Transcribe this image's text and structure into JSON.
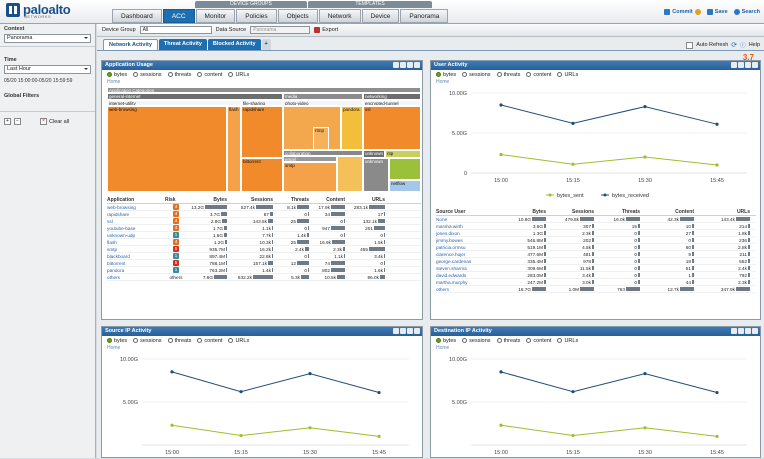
{
  "app": {
    "brand": "paloalto",
    "brand_sub": "NETWORKS"
  },
  "header": {
    "group_device": "DEVICE GROUPS",
    "group_templates": "TEMPLATES",
    "tabs": [
      "Dashboard",
      "ACC",
      "Monitor",
      "Policies",
      "Objects",
      "Network",
      "Device",
      "Panorama"
    ],
    "active_tab": "ACC",
    "commit": "Commit",
    "save": "Save",
    "search": "Search"
  },
  "left": {
    "context_label": "Context",
    "context_value": "Panorama",
    "time_label": "Time",
    "time_value": "Last Hour",
    "time_range": "05/20 15:00:00-05/20 15:59:59",
    "global_filters": "Global Filters",
    "clear_all": "Clear all"
  },
  "toolbar": {
    "device_group_label": "Device Group",
    "device_group_value": "All",
    "data_source_label": "Data Source",
    "data_source_value": "Panorama",
    "export": "Export"
  },
  "subtabs": [
    "Network Activity",
    "Threat Activity",
    "Blocked Activity",
    "+"
  ],
  "auto_refresh": "Auto Refresh",
  "help": "Help",
  "risk_value": "3.7",
  "radios": [
    "bytes",
    "sessions",
    "threats",
    "content",
    "URLs"
  ],
  "home": "Home",
  "app_usage": {
    "title": "Application Usage",
    "treemap": {
      "root": "Application Categories",
      "l1": [
        {
          "label": "general-internet"
        },
        {
          "label": "media"
        },
        {
          "label": "networking"
        }
      ],
      "cells": [
        "internet-utility",
        "file-sharing",
        "photo-video",
        "encrypted-tunnel",
        "web-browsing",
        "flash",
        "rapidshare",
        "pandora",
        "ssl",
        "rtmp",
        "bittorrent",
        "collaboration",
        "email",
        "smtp",
        "unknown",
        "ntp",
        "netflow",
        "unknown"
      ]
    },
    "columns": [
      "Application",
      "Risk",
      "Bytes",
      "Sessions",
      "Threats",
      "Content",
      "URLs"
    ],
    "rows": [
      {
        "app": "web-browsing",
        "risk": "4",
        "bytes": "13.2G",
        "sessions": "527.4k",
        "threats": "8.1k",
        "content": "17.9k",
        "urls": "283.1k"
      },
      {
        "app": "rapidshare",
        "risk": "4",
        "bytes": "3.7G",
        "sessions": "87",
        "threats": "0",
        "content": "34",
        "urls": "17"
      },
      {
        "app": "ssl",
        "risk": "4",
        "bytes": "2.8G",
        "sessions": "143.5k",
        "threats": "25",
        "content": "0",
        "urls": "132.1k"
      },
      {
        "app": "youtube-base",
        "risk": "4",
        "bytes": "1.7G",
        "sessions": "1.1k",
        "threats": "0",
        "content": "947",
        "urls": "201"
      },
      {
        "app": "unknown-udp",
        "risk": "1",
        "bytes": "1.6G",
        "sessions": "7.7k",
        "threats": "1.4k",
        "content": "0",
        "urls": "0"
      },
      {
        "app": "flash",
        "risk": "4",
        "bytes": "1.2G",
        "sessions": "10.3k",
        "threats": "25",
        "content": "16.9k",
        "urls": "1.5k"
      },
      {
        "app": "smtp",
        "risk": "5",
        "bytes": "935.7M",
        "sessions": "16.2k",
        "threats": "2.4k",
        "content": "2.3k",
        "urls": "455"
      },
      {
        "app": "blackboard",
        "risk": "1",
        "bytes": "897.4M",
        "sessions": "22.8k",
        "threats": "0",
        "content": "1.1k",
        "urls": "3.4k"
      },
      {
        "app": "bittorrent",
        "risk": "5",
        "bytes": "788.1M",
        "sessions": "157.1k",
        "threats": "12",
        "content": "74",
        "urls": "0"
      },
      {
        "app": "pandora",
        "risk": "1",
        "bytes": "763.2M",
        "sessions": "1.4k",
        "threats": "0",
        "content": "802",
        "urls": "1.6k"
      },
      {
        "app": "others",
        "risk": "others",
        "bytes": "7.6G",
        "sessions": "632.2k",
        "threats": "5.3k",
        "content": "10.5k",
        "urls": "86.0k"
      }
    ]
  },
  "user_activity": {
    "title": "User Activity",
    "chart": {
      "yticks": [
        "10.00G",
        "5.00G",
        "0"
      ],
      "xticks": [
        "15:00",
        "15:15",
        "15:30",
        "15:45"
      ],
      "legend": [
        "bytes_sent",
        "bytes_received"
      ]
    },
    "columns": [
      "Source User",
      "Bytes",
      "Sessions",
      "Threats",
      "Content",
      "URLs"
    ],
    "rows": [
      {
        "user": "None",
        "bytes": "10.8G",
        "sessions": "479.8k",
        "threats": "16.0k",
        "content": "42.3k",
        "urls": "143.4k"
      },
      {
        "user": "marsha.wirth",
        "bytes": "3.6G",
        "sessions": "307",
        "threats": "15",
        "content": "10",
        "urls": "214"
      },
      {
        "user": "jones.dixon",
        "bytes": "1.3G",
        "sessions": "2.3k",
        "threats": "0",
        "content": "27",
        "urls": "1.8k"
      },
      {
        "user": "jimmy.bowes",
        "bytes": "546.8M",
        "sessions": "202",
        "threats": "0",
        "content": "0",
        "urls": "236"
      },
      {
        "user": "patricia.ormsu",
        "bytes": "519.1M",
        "sessions": "4.5k",
        "threats": "0",
        "content": "60",
        "urls": "2.8k"
      },
      {
        "user": "clarence.hujer",
        "bytes": "477.6M",
        "sessions": "481",
        "threats": "0",
        "content": "9",
        "urls": "211"
      },
      {
        "user": "george.cardenas",
        "bytes": "335.4M",
        "sessions": "978",
        "threats": "0",
        "content": "18",
        "urls": "552"
      },
      {
        "user": "steven.sharma",
        "bytes": "309.6M",
        "sessions": "11.5k",
        "threats": "0",
        "content": "51",
        "urls": "2.4k"
      },
      {
        "user": "david.edwards",
        "bytes": "283.0M",
        "sessions": "3.4k",
        "threats": "0",
        "content": "1",
        "urls": "792"
      },
      {
        "user": "martha.murphy",
        "bytes": "247.2M",
        "sessions": "3.0k",
        "threats": "0",
        "content": "44",
        "urls": "2.3k"
      },
      {
        "user": "others",
        "bytes": "16.7G",
        "sessions": "1.0M",
        "threats": "763",
        "content": "12.7k",
        "urls": "347.9k"
      }
    ]
  },
  "source_ip": {
    "title": "Source IP Activity",
    "chart": {
      "yticks": [
        "10.00G",
        "5.00G"
      ],
      "xticks": [
        "15:00",
        "15:15",
        "15:30",
        "15:45"
      ]
    }
  },
  "dest_ip": {
    "title": "Destination IP Activity",
    "chart": {
      "yticks": [
        "10.00G",
        "5.00G"
      ],
      "xticks": [
        "15:00",
        "15:15",
        "15:30",
        "15:45"
      ]
    }
  },
  "chart_data": [
    {
      "type": "line",
      "title": "User Activity",
      "x": [
        "15:00",
        "15:15",
        "15:30",
        "15:45"
      ],
      "ylim": [
        0,
        10
      ],
      "ylabel": "G",
      "series": [
        {
          "name": "bytes_received",
          "values": [
            8.5,
            6.2,
            8.3,
            6.1
          ],
          "color": "#1f4e79"
        },
        {
          "name": "bytes_sent",
          "values": [
            2.3,
            1.1,
            2.0,
            1.0
          ],
          "color": "#9cbf2e"
        }
      ]
    },
    {
      "type": "line",
      "title": "Source IP Activity",
      "x": [
        "15:00",
        "15:15",
        "15:30",
        "15:45"
      ],
      "ylim": [
        0,
        10
      ],
      "series": [
        {
          "name": "bytes_received",
          "values": [
            8.5,
            6.2,
            8.3,
            6.1
          ],
          "color": "#1f4e79"
        },
        {
          "name": "bytes_sent",
          "values": [
            2.3,
            1.1,
            2.0,
            1.0
          ],
          "color": "#9cbf2e"
        }
      ]
    },
    {
      "type": "line",
      "title": "Destination IP Activity",
      "x": [
        "15:00",
        "15:15",
        "15:30",
        "15:45"
      ],
      "ylim": [
        0,
        10
      ],
      "series": [
        {
          "name": "bytes_received",
          "values": [
            8.5,
            6.2,
            8.3,
            6.1
          ],
          "color": "#1f4e79"
        },
        {
          "name": "bytes_sent",
          "values": [
            2.3,
            1.1,
            2.0,
            1.0
          ],
          "color": "#9cbf2e"
        }
      ]
    }
  ]
}
